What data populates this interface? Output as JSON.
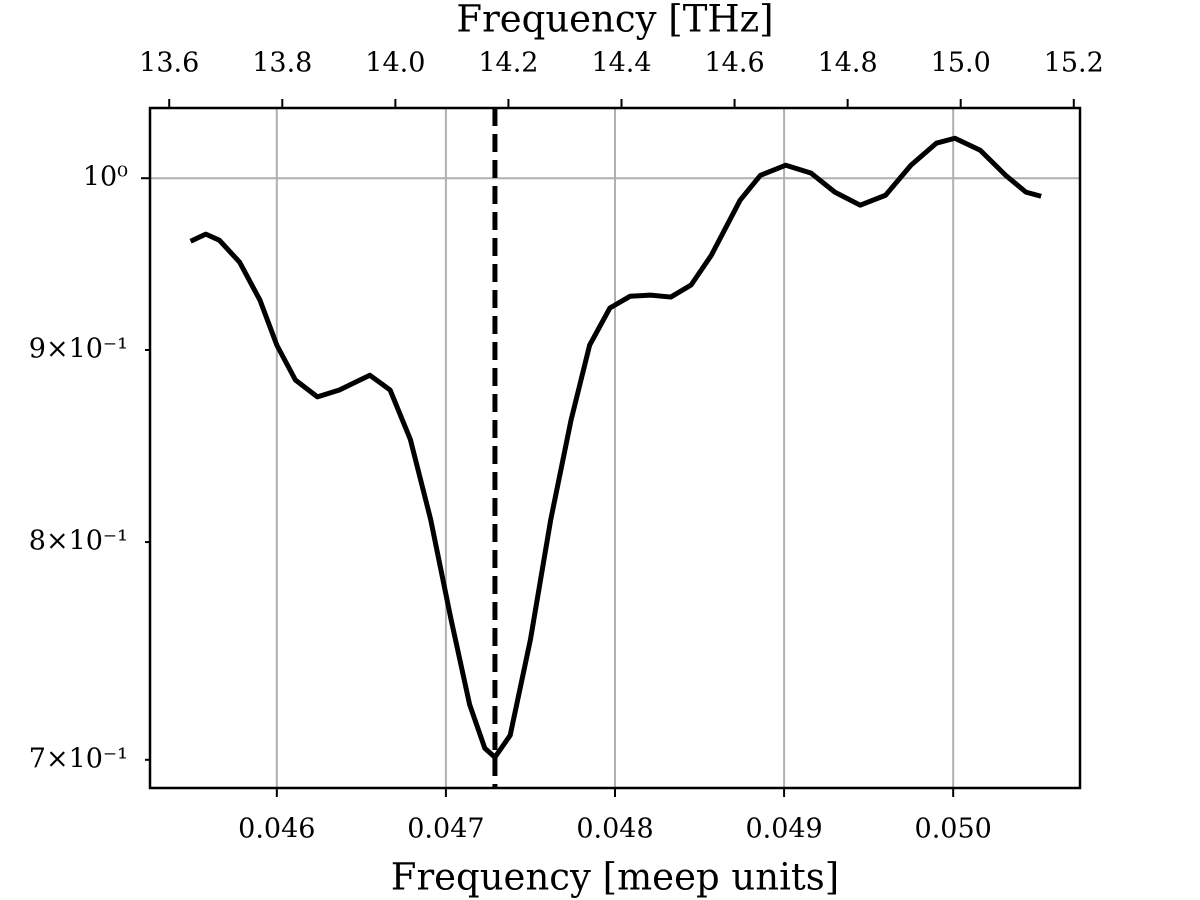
{
  "chart_data": {
    "type": "line",
    "log_y": true,
    "grid": true,
    "xlabel": "Frequency [meep units]",
    "x2label": "Frequency [THz]",
    "x": [
      0.04549,
      0.04558,
      0.04566,
      0.04578,
      0.0459,
      0.046,
      0.04611,
      0.04624,
      0.04637,
      0.04655,
      0.04667,
      0.04679,
      0.04691,
      0.04703,
      0.04714,
      0.04723,
      0.04729,
      0.04738,
      0.0475,
      0.04762,
      0.04774,
      0.04785,
      0.04797,
      0.04809,
      0.04821,
      0.04833,
      0.04845,
      0.04857,
      0.04874,
      0.04886,
      0.04901,
      0.04916,
      0.0493,
      0.04945,
      0.0496,
      0.04975,
      0.0499,
      0.05001,
      0.05016,
      0.05031,
      0.05043,
      0.05052
    ],
    "series": [
      {
        "color": "#000000",
        "values": [
          0.9621,
          0.9663,
          0.9627,
          0.9498,
          0.928,
          0.9027,
          0.8836,
          0.8745,
          0.8782,
          0.8862,
          0.8782,
          0.8519,
          0.8111,
          0.7631,
          0.7242,
          0.705,
          0.7011,
          0.7106,
          0.7536,
          0.8111,
          0.8621,
          0.9027,
          0.9235,
          0.9302,
          0.9308,
          0.9297,
          0.9366,
          0.9539,
          0.9866,
          1.0018,
          1.008,
          1.0031,
          0.9915,
          0.9836,
          0.9896,
          1.008,
          1.0217,
          1.0248,
          1.0173,
          1.0018,
          0.9915,
          0.989
        ]
      }
    ],
    "vline": 0.04729,
    "xlim": [
      0.04525,
      0.05075
    ],
    "xticks": [
      0.046,
      0.047,
      0.048,
      0.049,
      {
        "value": 0.05,
        "label": "0.050"
      }
    ],
    "x2lim": [
      13.566,
      15.211
    ],
    "x2ticks": [
      {
        "value": 13.6,
        "label": "13.6"
      },
      {
        "value": 13.8,
        "label": "13.8"
      },
      {
        "value": 14,
        "label": "14.0"
      },
      {
        "value": 14.2,
        "label": "14.2"
      },
      {
        "value": 14.4,
        "label": "14.4"
      },
      {
        "value": 14.6,
        "label": "14.6"
      },
      {
        "value": 14.8,
        "label": "14.8"
      },
      {
        "value": 15,
        "label": "15.0"
      },
      {
        "value": 15.2,
        "label": "15.2"
      }
    ],
    "ylim": [
      0.688,
      1.044
    ],
    "yticks": [
      {
        "value": 0.7,
        "label": "7×10⁻¹"
      },
      {
        "value": 0.8,
        "label": "8×10⁻¹"
      },
      {
        "value": 0.9,
        "label": "9×10⁻¹"
      },
      {
        "value": 1,
        "label": "10⁰"
      }
    ]
  }
}
